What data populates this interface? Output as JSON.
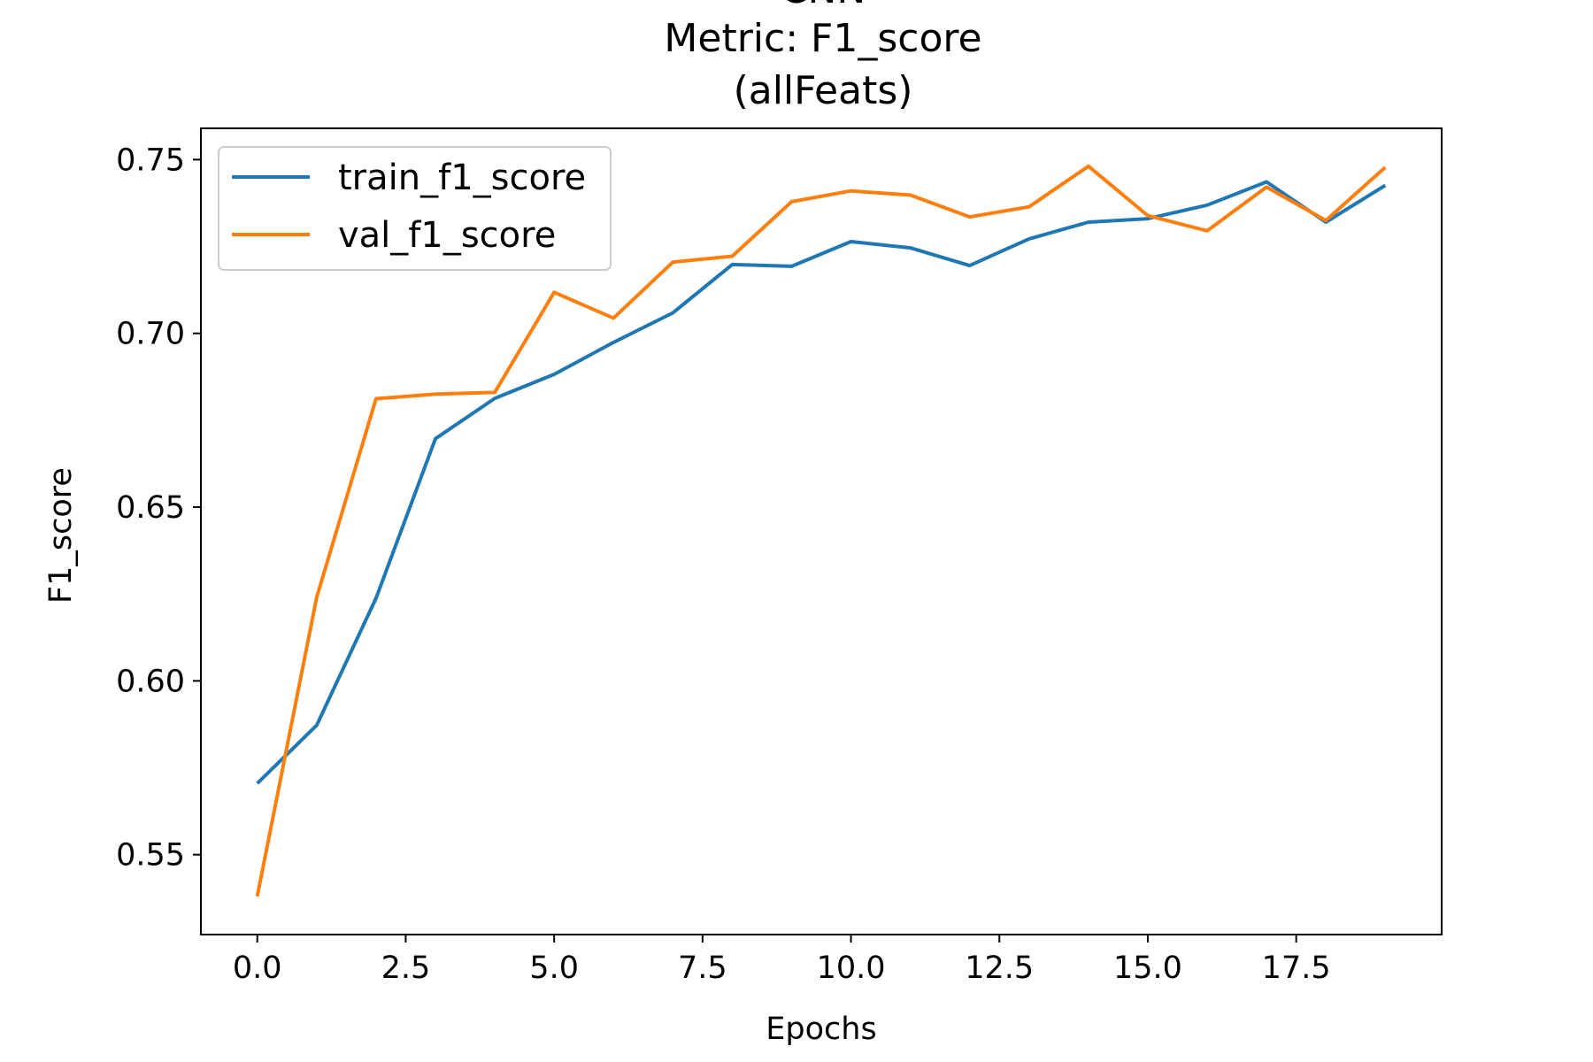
{
  "chart_data": {
    "type": "line",
    "title_lines": [
      "CNN",
      "Metric: F1_score",
      "(allFeats)"
    ],
    "xlabel": "Epochs",
    "ylabel": "F1_score",
    "x": [
      0,
      1,
      2,
      3,
      4,
      5,
      6,
      7,
      8,
      9,
      10,
      11,
      12,
      13,
      14,
      15,
      16,
      17,
      18,
      19
    ],
    "xlim": [
      -0.95,
      19.95
    ],
    "ylim": [
      0.527,
      0.759
    ],
    "xticks": [
      0,
      2.5,
      5,
      7.5,
      10,
      12.5,
      15,
      17.5
    ],
    "xtick_labels": [
      "0.0",
      "2.5",
      "5.0",
      "7.5",
      "10.0",
      "12.5",
      "15.0",
      "17.5"
    ],
    "yticks": [
      0.55,
      0.6,
      0.65,
      0.7,
      0.75
    ],
    "ytick_labels": [
      "0.55",
      "0.60",
      "0.65",
      "0.70",
      "0.75"
    ],
    "grid": false,
    "legend_position": "top-left",
    "series": [
      {
        "name": "train_f1_score",
        "color": "#1f77b4",
        "values": [
          0.5705,
          0.5872,
          0.6238,
          0.6697,
          0.6813,
          0.6882,
          0.6974,
          0.7059,
          0.7198,
          0.7193,
          0.7264,
          0.7246,
          0.7195,
          0.7272,
          0.732,
          0.733,
          0.7369,
          0.7436,
          0.732,
          0.7426
        ]
      },
      {
        "name": "val_f1_score",
        "color": "#ff7f0e",
        "values": [
          0.538,
          0.624,
          0.6812,
          0.6825,
          0.683,
          0.7118,
          0.7044,
          0.7205,
          0.7222,
          0.7379,
          0.741,
          0.7398,
          0.7335,
          0.7364,
          0.7481,
          0.7339,
          0.7295,
          0.7421,
          0.7325,
          0.7478
        ]
      }
    ]
  }
}
